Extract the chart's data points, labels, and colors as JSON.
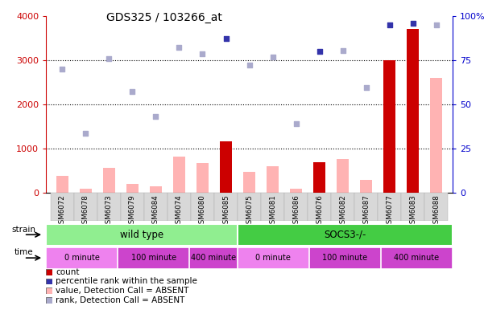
{
  "title": "GDS325 / 103266_at",
  "samples": [
    "GSM6072",
    "GSM6078",
    "GSM6073",
    "GSM6079",
    "GSM6084",
    "GSM6074",
    "GSM6080",
    "GSM6085",
    "GSM6075",
    "GSM6081",
    "GSM6086",
    "GSM6076",
    "GSM6082",
    "GSM6087",
    "GSM6077",
    "GSM6083",
    "GSM6088"
  ],
  "count_values": [
    null,
    null,
    null,
    null,
    null,
    null,
    null,
    1150,
    null,
    null,
    null,
    680,
    null,
    null,
    3000,
    3700,
    null
  ],
  "count_absent_values": [
    380,
    90,
    560,
    200,
    130,
    820,
    660,
    null,
    470,
    600,
    90,
    null,
    760,
    290,
    null,
    null,
    2600
  ],
  "rank_values": [
    null,
    null,
    null,
    null,
    null,
    null,
    null,
    3480,
    null,
    null,
    null,
    3200,
    null,
    null,
    3800,
    3840,
    null
  ],
  "rank_absent_values": [
    2800,
    1340,
    3030,
    2280,
    1730,
    3290,
    3150,
    null,
    2880,
    3060,
    1560,
    null,
    3220,
    2380,
    null,
    null,
    3800
  ],
  "ylim_left": [
    0,
    4000
  ],
  "ylim_right": [
    0,
    100
  ],
  "yticks_left": [
    0,
    1000,
    2000,
    3000,
    4000
  ],
  "ytick_labels_left": [
    "0",
    "1000",
    "2000",
    "3000",
    "4000"
  ],
  "yticks_right": [
    0,
    25,
    50,
    75,
    100
  ],
  "ytick_labels_right": [
    "0",
    "25",
    "50",
    "75",
    "100%"
  ],
  "bar_width": 0.5,
  "count_color": "#CC0000",
  "count_absent_color": "#FFB3B3",
  "rank_color": "#3333AA",
  "rank_absent_color": "#AAAACC",
  "left_axis_color": "#CC0000",
  "right_axis_color": "#0000CC",
  "strain_wt_color": "#90EE90",
  "strain_socs_color": "#44CC44",
  "time_color_light": "#EE82EE",
  "time_color_dark": "#CC44CC",
  "legend_items": [
    {
      "color": "#CC0000",
      "label": "count"
    },
    {
      "color": "#3333AA",
      "label": "percentile rank within the sample"
    },
    {
      "color": "#FFB3B3",
      "label": "value, Detection Call = ABSENT"
    },
    {
      "color": "#AAAACC",
      "label": "rank, Detection Call = ABSENT"
    }
  ],
  "time_groups": [
    {
      "label": "0 minute",
      "n": 3,
      "dark": false
    },
    {
      "label": "100 minute",
      "n": 3,
      "dark": true
    },
    {
      "label": "400 minute",
      "n": 2,
      "dark": true
    },
    {
      "label": "0 minute",
      "n": 3,
      "dark": false
    },
    {
      "label": "100 minute",
      "n": 3,
      "dark": true
    },
    {
      "label": "400 minute",
      "n": 3,
      "dark": true
    }
  ]
}
